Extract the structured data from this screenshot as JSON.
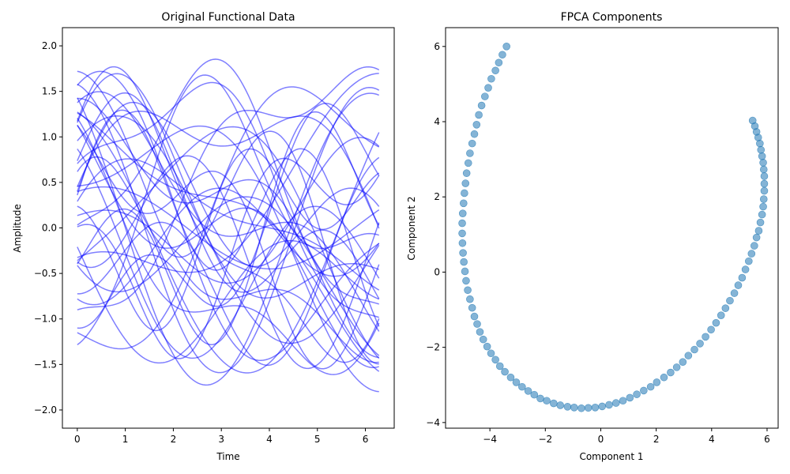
{
  "chart_data": [
    {
      "type": "line",
      "title": "Original Functional Data",
      "xlabel": "Time",
      "ylabel": "Amplitude",
      "xlim": [
        -0.31,
        6.6
      ],
      "ylim": [
        -2.2,
        2.2
      ],
      "xticks": [
        0,
        1,
        2,
        3,
        4,
        5,
        6
      ],
      "xtick_labels": [
        "0",
        "1",
        "2",
        "3",
        "4",
        "5",
        "6"
      ],
      "yticks": [
        -2.0,
        -1.5,
        -1.0,
        -0.5,
        0.0,
        0.5,
        1.0,
        1.5,
        2.0
      ],
      "ytick_labels": [
        "−2.0",
        "−1.5",
        "−1.0",
        "−0.5",
        "0.0",
        "0.5",
        "1.0",
        "1.5",
        "2.0"
      ],
      "grid": false,
      "color": "#0000ff",
      "opacity": 0.5,
      "x_range": [
        0,
        6.283
      ],
      "curve_form": "A*sin(f*t + p) + B*cos(g*t + q)",
      "series": [
        {
          "A": 0.8,
          "f": 1.0,
          "p": 0.5,
          "B": 0.6,
          "g": 0.5,
          "q": 0.3
        },
        {
          "A": 1.0,
          "f": 0.5,
          "p": 1.2,
          "B": 0.5,
          "g": 1.5,
          "q": 0.2
        },
        {
          "A": 1.2,
          "f": 0.8,
          "p": -0.5,
          "B": 0.4,
          "g": 1.2,
          "q": 1.0
        },
        {
          "A": 0.7,
          "f": 1.5,
          "p": 0.0,
          "B": 0.8,
          "g": 0.6,
          "q": -0.4
        },
        {
          "A": 1.5,
          "f": 0.6,
          "p": 0.3,
          "B": 0.3,
          "g": 1.8,
          "q": 0.5
        },
        {
          "A": 0.9,
          "f": 1.2,
          "p": 2.0,
          "B": 0.7,
          "g": 0.4,
          "q": 1.5
        },
        {
          "A": 1.1,
          "f": 0.4,
          "p": -1.0,
          "B": 0.6,
          "g": 1.0,
          "q": 0.0
        },
        {
          "A": 0.6,
          "f": 1.8,
          "p": 0.7,
          "B": 0.9,
          "g": 0.7,
          "q": 2.0
        },
        {
          "A": 1.3,
          "f": 0.7,
          "p": 1.5,
          "B": 0.5,
          "g": 1.3,
          "q": -1.0
        },
        {
          "A": 0.8,
          "f": 0.9,
          "p": -0.2,
          "B": 0.8,
          "g": 0.9,
          "q": 0.8
        },
        {
          "A": 1.4,
          "f": 0.5,
          "p": 2.5,
          "B": 0.4,
          "g": 1.6,
          "q": 0.4
        },
        {
          "A": 0.5,
          "f": 1.4,
          "p": 1.0,
          "B": 1.0,
          "g": 0.5,
          "q": -0.3
        },
        {
          "A": 1.0,
          "f": 1.1,
          "p": -1.5,
          "B": 0.6,
          "g": 0.8,
          "q": 1.2
        },
        {
          "A": 1.2,
          "f": 0.6,
          "p": 0.9,
          "B": 0.6,
          "g": 1.1,
          "q": 2.5
        },
        {
          "A": 0.9,
          "f": 1.6,
          "p": 0.2,
          "B": 0.5,
          "g": 0.6,
          "q": -1.2
        },
        {
          "A": 1.6,
          "f": 0.45,
          "p": -0.8,
          "B": 0.3,
          "g": 1.9,
          "q": 0.6
        },
        {
          "A": 0.7,
          "f": 1.3,
          "p": 2.8,
          "B": 0.9,
          "g": 0.55,
          "q": 0.1
        },
        {
          "A": 1.1,
          "f": 0.75,
          "p": 0.6,
          "B": 0.7,
          "g": 1.25,
          "q": -0.7
        },
        {
          "A": 0.8,
          "f": 1.7,
          "p": -0.3,
          "B": 0.7,
          "g": 0.75,
          "q": 1.8
        },
        {
          "A": 1.3,
          "f": 0.55,
          "p": 1.9,
          "B": 0.5,
          "g": 1.45,
          "q": -0.2
        },
        {
          "A": 1.0,
          "f": 0.95,
          "p": -2.0,
          "B": 0.8,
          "g": 0.45,
          "q": 0.9
        },
        {
          "A": 0.6,
          "f": 1.9,
          "p": 1.4,
          "B": 0.6,
          "g": 0.85,
          "q": 2.2
        },
        {
          "A": 1.5,
          "f": 0.65,
          "p": -0.1,
          "B": 0.4,
          "g": 1.7,
          "q": 1.1
        },
        {
          "A": 0.9,
          "f": 1.25,
          "p": 0.4,
          "B": 0.7,
          "g": 0.65,
          "q": -1.5
        },
        {
          "A": 1.2,
          "f": 0.85,
          "p": 2.2,
          "B": 0.6,
          "g": 1.05,
          "q": 0.7
        },
        {
          "A": 0.75,
          "f": 1.45,
          "p": -1.2,
          "B": 0.85,
          "g": 0.5,
          "q": 1.6
        },
        {
          "A": 1.4,
          "f": 0.5,
          "p": 0.1,
          "B": 0.5,
          "g": 1.35,
          "q": -0.9
        },
        {
          "A": 0.85,
          "f": 1.05,
          "p": 1.7,
          "B": 0.75,
          "g": 0.95,
          "q": 0.2
        },
        {
          "A": 1.1,
          "f": 0.7,
          "p": -0.6,
          "B": 0.65,
          "g": 1.55,
          "q": 2.4
        },
        {
          "A": 0.65,
          "f": 1.65,
          "p": 2.6,
          "B": 0.9,
          "g": 0.7,
          "q": -0.5
        },
        {
          "A": 1.25,
          "f": 0.6,
          "p": 1.1,
          "B": 0.55,
          "g": 1.15,
          "q": 1.3
        },
        {
          "A": 0.95,
          "f": 1.35,
          "p": -1.8,
          "B": 0.6,
          "g": 0.6,
          "q": 0.4
        },
        {
          "A": 1.35,
          "f": 0.8,
          "p": 0.8,
          "B": 0.45,
          "g": 1.75,
          "q": -1.1
        },
        {
          "A": 0.7,
          "f": 1.15,
          "p": 3.0,
          "B": 0.95,
          "g": 0.4,
          "q": 1.9
        },
        {
          "A": 1.05,
          "f": 0.9,
          "p": -0.4,
          "B": 0.7,
          "g": 1.2,
          "q": 0.0
        },
        {
          "A": 0.9,
          "f": 1.55,
          "p": 1.3,
          "B": 0.6,
          "g": 0.8,
          "q": -2.0
        },
        {
          "A": 1.45,
          "f": 0.55,
          "p": -1.4,
          "B": 0.4,
          "g": 1.4,
          "q": 0.8
        },
        {
          "A": 0.8,
          "f": 1.2,
          "p": 0.0,
          "B": 0.8,
          "g": 1.0,
          "q": 1.4
        },
        {
          "A": 1.15,
          "f": 0.75,
          "p": 2.4,
          "B": 0.6,
          "g": 0.9,
          "q": -0.6
        },
        {
          "A": 0.6,
          "f": 1.75,
          "p": -0.9,
          "B": 0.95,
          "g": 0.6,
          "q": 2.6
        }
      ]
    },
    {
      "type": "scatter",
      "title": "FPCA Components",
      "xlabel": "Component 1",
      "ylabel": "Component 2",
      "xlim": [
        -5.6,
        6.4
      ],
      "ylim": [
        -4.15,
        6.5
      ],
      "xticks": [
        -4,
        -2,
        0,
        2,
        4,
        6
      ],
      "xtick_labels": [
        "−4",
        "−2",
        "0",
        "2",
        "4",
        "6"
      ],
      "yticks": [
        -4,
        -2,
        0,
        2,
        4,
        6
      ],
      "ytick_labels": [
        "−4",
        "−2",
        "0",
        "2",
        "4",
        "6"
      ],
      "grid": false,
      "color": "#1f77b4",
      "opacity": 0.55,
      "points": [
        [
          -3.4,
          6.0
        ],
        [
          -3.55,
          5.78
        ],
        [
          -3.68,
          5.57
        ],
        [
          -3.8,
          5.36
        ],
        [
          -3.95,
          5.14
        ],
        [
          -4.06,
          4.9
        ],
        [
          -4.18,
          4.67
        ],
        [
          -4.3,
          4.43
        ],
        [
          -4.4,
          4.18
        ],
        [
          -4.48,
          3.92
        ],
        [
          -4.56,
          3.67
        ],
        [
          -4.64,
          3.42
        ],
        [
          -4.72,
          3.16
        ],
        [
          -4.78,
          2.9
        ],
        [
          -4.84,
          2.63
        ],
        [
          -4.88,
          2.36
        ],
        [
          -4.92,
          2.1
        ],
        [
          -4.95,
          1.83
        ],
        [
          -4.98,
          1.56
        ],
        [
          -5.0,
          1.3
        ],
        [
          -5.0,
          1.03
        ],
        [
          -4.99,
          0.77
        ],
        [
          -4.97,
          0.51
        ],
        [
          -4.94,
          0.27
        ],
        [
          -4.9,
          0.02
        ],
        [
          -4.86,
          -0.23
        ],
        [
          -4.8,
          -0.48
        ],
        [
          -4.72,
          -0.72
        ],
        [
          -4.64,
          -0.95
        ],
        [
          -4.56,
          -1.18
        ],
        [
          -4.46,
          -1.38
        ],
        [
          -4.36,
          -1.59
        ],
        [
          -4.24,
          -1.79
        ],
        [
          -4.1,
          -1.98
        ],
        [
          -3.96,
          -2.16
        ],
        [
          -3.8,
          -2.33
        ],
        [
          -3.64,
          -2.5
        ],
        [
          -3.46,
          -2.65
        ],
        [
          -3.25,
          -2.8
        ],
        [
          -3.05,
          -2.93
        ],
        [
          -2.84,
          -3.05
        ],
        [
          -2.62,
          -3.16
        ],
        [
          -2.4,
          -3.26
        ],
        [
          -2.18,
          -3.36
        ],
        [
          -1.95,
          -3.42
        ],
        [
          -1.7,
          -3.49
        ],
        [
          -1.46,
          -3.54
        ],
        [
          -1.2,
          -3.58
        ],
        [
          -0.96,
          -3.6
        ],
        [
          -0.7,
          -3.62
        ],
        [
          -0.45,
          -3.61
        ],
        [
          -0.2,
          -3.6
        ],
        [
          0.05,
          -3.57
        ],
        [
          0.3,
          -3.53
        ],
        [
          0.55,
          -3.48
        ],
        [
          0.8,
          -3.42
        ],
        [
          1.05,
          -3.34
        ],
        [
          1.3,
          -3.25
        ],
        [
          1.55,
          -3.15
        ],
        [
          1.8,
          -3.05
        ],
        [
          2.02,
          -2.93
        ],
        [
          2.28,
          -2.8
        ],
        [
          2.52,
          -2.67
        ],
        [
          2.74,
          -2.53
        ],
        [
          2.96,
          -2.39
        ],
        [
          3.16,
          -2.22
        ],
        [
          3.38,
          -2.06
        ],
        [
          3.58,
          -1.9
        ],
        [
          3.78,
          -1.72
        ],
        [
          3.98,
          -1.53
        ],
        [
          4.16,
          -1.35
        ],
        [
          4.34,
          -1.15
        ],
        [
          4.5,
          -0.96
        ],
        [
          4.66,
          -0.76
        ],
        [
          4.82,
          -0.56
        ],
        [
          4.96,
          -0.35
        ],
        [
          5.1,
          -0.15
        ],
        [
          5.22,
          0.07
        ],
        [
          5.34,
          0.29
        ],
        [
          5.44,
          0.49
        ],
        [
          5.54,
          0.7
        ],
        [
          5.62,
          0.92
        ],
        [
          5.7,
          1.1
        ],
        [
          5.76,
          1.32
        ],
        [
          5.82,
          1.53
        ],
        [
          5.86,
          1.74
        ],
        [
          5.88,
          1.94
        ],
        [
          5.9,
          2.16
        ],
        [
          5.9,
          2.35
        ],
        [
          5.9,
          2.55
        ],
        [
          5.88,
          2.73
        ],
        [
          5.86,
          2.91
        ],
        [
          5.82,
          3.08
        ],
        [
          5.78,
          3.25
        ],
        [
          5.74,
          3.42
        ],
        [
          5.68,
          3.58
        ],
        [
          5.62,
          3.73
        ],
        [
          5.56,
          3.88
        ],
        [
          5.48,
          4.03
        ]
      ]
    }
  ]
}
